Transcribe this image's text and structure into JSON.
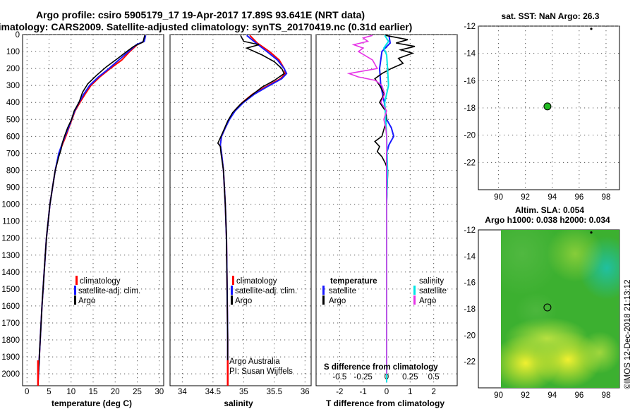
{
  "header": {
    "title_line1": "Argo profile: csiro 5905179_17 19-Apr-2017 17.89S 93.641E (NRT data)",
    "title_line2": "Climatology: CARS2009. Satellite-adjusted climatology: synTS_20170419.nc (0.31d earlier)"
  },
  "colors": {
    "climatology": "#ff0000",
    "satellite": "#1a1aff",
    "argo": "#000000",
    "salinity_sat": "#00e5e5",
    "salinity_argo": "#e633e6",
    "sst_dot": "#22bb22"
  },
  "chart_data": [
    {
      "type": "line",
      "id": "temperature",
      "xlabel": "temperature (deg C)",
      "ylim": [
        2070,
        0
      ],
      "xlim": [
        -1,
        31
      ],
      "xticks": [
        0,
        5,
        10,
        15,
        20,
        25,
        30
      ],
      "xtick_labels": [
        "0",
        "5",
        "10",
        "15",
        "20",
        "25",
        "30"
      ],
      "yticks": [
        0,
        100,
        200,
        300,
        400,
        500,
        600,
        700,
        800,
        900,
        1000,
        1100,
        1200,
        1300,
        1400,
        1500,
        1600,
        1700,
        1800,
        1900,
        2000
      ],
      "ytick_labels": [
        "0",
        "100",
        "200",
        "300",
        "400",
        "500",
        "600",
        "700",
        "800",
        "900",
        "1000",
        "1100",
        "1200",
        "1300",
        "1400",
        "1500",
        "1600",
        "1700",
        "1800",
        "1900",
        "2000"
      ],
      "legend": [
        "climatology",
        "satellite-adj. clim.",
        "Argo"
      ],
      "series": [
        {
          "name": "climatology",
          "depth": [
            5,
            40,
            60,
            100,
            150,
            200,
            250,
            300,
            350,
            400,
            450,
            500,
            550,
            600,
            650,
            700,
            800,
            900,
            1000,
            1200,
            1400,
            1600,
            1800,
            2000,
            2050
          ],
          "values": [
            26.8,
            26.5,
            25.0,
            23.3,
            21.5,
            18.9,
            16.5,
            14.5,
            13.2,
            12.0,
            10.9,
            10.2,
            9.5,
            8.8,
            8.0,
            7.3,
            6.4,
            5.8,
            5.2,
            4.4,
            3.9,
            3.4,
            3.0,
            2.6,
            2.5
          ]
        },
        {
          "name": "satellite-adj. clim.",
          "depth": [
            5,
            40,
            60,
            100,
            150,
            200,
            250,
            300,
            350,
            400,
            450,
            500,
            550,
            600,
            650,
            700,
            800,
            900,
            1000,
            1200,
            1400,
            1600,
            1800,
            2000,
            2050
          ],
          "values": [
            26.9,
            26.6,
            24.8,
            23.0,
            20.8,
            18.6,
            16.2,
            14.2,
            12.9,
            11.8,
            10.8,
            10.1,
            9.4,
            8.6,
            7.9,
            7.2,
            6.4,
            5.8,
            5.2,
            4.4,
            3.9,
            3.4,
            3.0,
            2.6,
            2.5
          ]
        },
        {
          "name": "Argo",
          "depth": [
            5,
            45,
            70,
            100,
            140,
            190,
            240,
            290,
            340,
            400,
            450,
            500,
            550,
            600,
            640,
            680,
            720,
            800,
            900,
            1000,
            1200,
            1400,
            1600,
            1800,
            2000
          ],
          "values": [
            26.7,
            26.3,
            24.2,
            22.6,
            20.6,
            18.0,
            15.8,
            13.8,
            12.6,
            11.8,
            10.7,
            10.1,
            9.2,
            8.5,
            8.0,
            7.7,
            7.2,
            6.4,
            5.8,
            5.2,
            4.4,
            3.9,
            3.4,
            3.0,
            2.6
          ]
        }
      ]
    },
    {
      "type": "line",
      "id": "salinity",
      "xlabel": "salinity",
      "ylim": [
        2070,
        0
      ],
      "xlim": [
        33.8,
        36.1
      ],
      "xticks": [
        34,
        34.5,
        35,
        35.5,
        36
      ],
      "xtick_labels": [
        "34",
        "34.5",
        "35",
        "35.5",
        "36"
      ],
      "legend": [
        "climatology",
        "satellite-adj. clim.",
        "Argo"
      ],
      "credit_line1": "Argo Australia",
      "credit_line2": "PI: Susan Wijffels",
      "series": [
        {
          "name": "climatology",
          "depth": [
            5,
            50,
            100,
            150,
            200,
            230,
            260,
            300,
            350,
            400,
            450,
            500,
            550,
            600,
            650,
            700,
            800,
            1000,
            1200,
            1500,
            1800,
            2050
          ],
          "values": [
            35.1,
            35.22,
            35.42,
            35.58,
            35.66,
            35.68,
            35.6,
            35.4,
            35.15,
            34.98,
            34.85,
            34.76,
            34.7,
            34.64,
            34.62,
            34.64,
            34.67,
            34.7,
            34.72,
            34.73,
            34.74,
            34.74
          ]
        },
        {
          "name": "satellite-adj. clim.",
          "depth": [
            5,
            50,
            100,
            150,
            200,
            230,
            260,
            300,
            350,
            400,
            450,
            500,
            550,
            600,
            650,
            700,
            800,
            1000,
            1200,
            1500,
            1800,
            2050
          ],
          "values": [
            35.05,
            35.2,
            35.38,
            35.55,
            35.66,
            35.7,
            35.62,
            35.42,
            35.18,
            35.0,
            34.86,
            34.77,
            34.7,
            34.64,
            34.62,
            34.64,
            34.67,
            34.7,
            34.72,
            34.73,
            34.74,
            34.74
          ]
        },
        {
          "name": "Argo",
          "depth": [
            5,
            40,
            60,
            80,
            120,
            160,
            200,
            230,
            270,
            310,
            360,
            410,
            460,
            510,
            560,
            600,
            640,
            660,
            700,
            800,
            1000,
            1200,
            1500,
            1800,
            2000
          ],
          "values": [
            34.95,
            35.0,
            35.25,
            35.05,
            35.3,
            35.5,
            35.62,
            35.66,
            35.5,
            35.3,
            35.12,
            34.95,
            34.82,
            34.74,
            34.68,
            34.63,
            34.58,
            34.62,
            34.63,
            34.67,
            34.7,
            34.72,
            34.73,
            34.74,
            34.74
          ]
        }
      ]
    },
    {
      "type": "line",
      "id": "difference",
      "xlabel": "T difference from climatology",
      "xlabel_top": "S difference from climatology",
      "xlim": [
        -3,
        3
      ],
      "xticks": [
        -2,
        -1,
        0,
        1,
        2
      ],
      "xtick_labels": [
        "-2",
        "-1",
        "0",
        "1",
        "2"
      ],
      "s_tick_labels": [
        "-0.5",
        "-0.25",
        "0",
        "0.25",
        "0.5"
      ],
      "legend_temperature_title": "temperature",
      "legend_salinity_title": "salinity",
      "legend_satellite": "satellite",
      "legend_argo": "Argo",
      "series": [
        {
          "name": "temperature satellite",
          "depth": [
            5,
            50,
            100,
            200,
            300,
            400,
            500,
            550,
            600,
            650,
            700,
            800,
            1000,
            1500,
            2000,
            2050
          ],
          "values": [
            0.1,
            0.15,
            -0.2,
            -0.3,
            -0.25,
            -0.1,
            0.0,
            0.2,
            0.3,
            0.1,
            0.0,
            0.0,
            0.0,
            0.0,
            0.0,
            0.0
          ]
        },
        {
          "name": "temperature Argo",
          "depth": [
            5,
            30,
            50,
            70,
            90,
            110,
            140,
            170,
            200,
            230,
            260,
            300,
            350,
            400,
            450,
            500,
            550,
            600,
            630,
            660,
            690,
            720,
            760,
            800,
            1000,
            1500,
            2000
          ],
          "values": [
            -0.05,
            0.9,
            0.4,
            1.2,
            0.6,
            1.1,
            0.5,
            0.7,
            0.2,
            -0.2,
            -0.5,
            -0.3,
            -0.1,
            -0.3,
            -0.05,
            0.0,
            -0.1,
            -0.2,
            -0.5,
            -0.3,
            -0.4,
            -0.2,
            -0.05,
            0.05,
            0.0,
            0.0,
            0.0
          ]
        },
        {
          "name": "salinity satellite",
          "depth": [
            5,
            40,
            80,
            120,
            200,
            300,
            400,
            600,
            800,
            1000,
            1500,
            2000,
            2050
          ],
          "values": [
            -0.02,
            0.02,
            -0.03,
            0.0,
            0.01,
            0.02,
            -0.02,
            0.0,
            0.01,
            0.0,
            0.0,
            0.0,
            0.0
          ]
        },
        {
          "name": "salinity Argo",
          "depth": [
            5,
            20,
            40,
            60,
            80,
            100,
            150,
            200,
            230,
            250,
            270,
            300,
            350,
            400,
            450,
            500,
            550,
            600,
            650,
            700,
            800,
            1000,
            1500,
            2000
          ],
          "values": [
            -0.15,
            -0.25,
            -0.2,
            -0.35,
            -0.25,
            -0.3,
            -0.15,
            -0.1,
            -0.4,
            -0.3,
            -0.12,
            -0.05,
            -0.02,
            -0.06,
            0.0,
            -0.03,
            -0.01,
            0.0,
            0.0,
            0.0,
            0.0,
            0.0,
            0.0,
            0.0
          ]
        }
      ]
    },
    {
      "type": "scatter",
      "id": "sst_map",
      "title": "sat. SST: NaN Argo: 26.3",
      "xlim": [
        88.5,
        99
      ],
      "ylim": [
        -24,
        -12
      ],
      "xticks": [
        90,
        92,
        94,
        96,
        98
      ],
      "xtick_labels": [
        "90",
        "92",
        "94",
        "96",
        "98"
      ],
      "yticks": [
        -12,
        -14,
        -16,
        -18,
        -20,
        -22
      ],
      "ytick_labels": [
        "-12",
        "-14",
        "-16",
        "-18",
        "-20",
        "-22"
      ],
      "points": [
        {
          "x": 93.64,
          "y": -17.89,
          "label": "profile"
        },
        {
          "x": 96.9,
          "y": -12.2,
          "label": "nearby"
        }
      ]
    },
    {
      "type": "heatmap",
      "id": "sla_map",
      "title_line1": "Altim. SLA: 0.054",
      "title_line2": "Argo h1000: 0.038 h2000: 0.034",
      "xlim": [
        88.5,
        99
      ],
      "ylim": [
        -24,
        -12
      ],
      "xticks": [
        90,
        92,
        94,
        96,
        98
      ],
      "xtick_labels": [
        "90",
        "92",
        "94",
        "96",
        "98"
      ],
      "yticks": [
        -12,
        -14,
        -16,
        -18,
        -20,
        -22
      ],
      "ytick_labels": [
        "-12",
        "-14",
        "-16",
        "-18",
        "-20",
        "-22"
      ],
      "points": [
        {
          "x": 93.64,
          "y": -17.89,
          "label": "profile"
        },
        {
          "x": 96.9,
          "y": -12.2,
          "label": "nearby"
        }
      ],
      "credit": "©IMOS 12-Dec-2018 21:13:12"
    }
  ]
}
